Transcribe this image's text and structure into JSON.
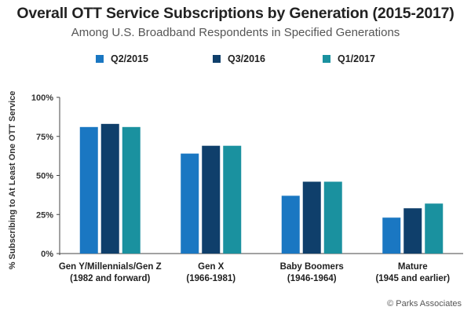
{
  "chart_data": {
    "type": "bar",
    "title": "Overall OTT Service Subscriptions by Generation (2015-2017)",
    "subtitle": "Among U.S. Broadband Respondents in Specified Generations",
    "ylabel": "% Subscribing to At Least One OTT Service",
    "ylim": [
      0,
      100
    ],
    "yticks": [
      0,
      25,
      50,
      75,
      100
    ],
    "ytick_labels": [
      "0%",
      "25%",
      "50%",
      "75%",
      "100%"
    ],
    "grid": false,
    "legend_position": "top",
    "categories": [
      [
        "Gen Y/Millennials/Gen Z",
        "(1982 and forward)"
      ],
      [
        "Gen X",
        "(1966-1981)"
      ],
      [
        "Baby Boomers",
        "(1946-1964)"
      ],
      [
        "Mature",
        "(1945 and earlier)"
      ]
    ],
    "series": [
      {
        "name": "Q2/2015",
        "color": "#1a77c2",
        "values": [
          81,
          64,
          37,
          23
        ]
      },
      {
        "name": "Q3/2016",
        "color": "#0f3f6b",
        "values": [
          83,
          69,
          46,
          29
        ]
      },
      {
        "name": "Q1/2017",
        "color": "#1a919f",
        "values": [
          81,
          69,
          46,
          32
        ]
      }
    ],
    "source": "© Parks Associates"
  }
}
